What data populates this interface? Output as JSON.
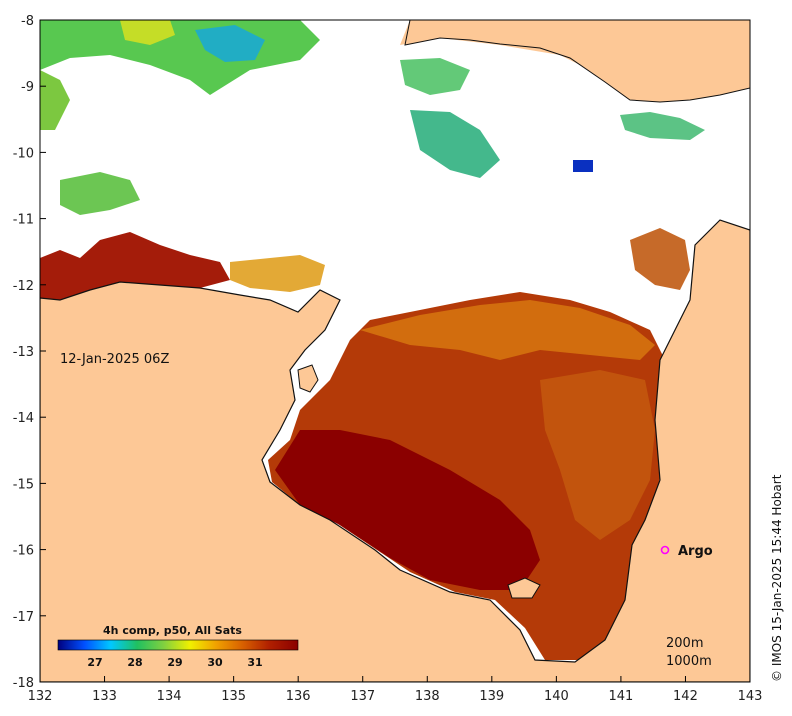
{
  "map": {
    "lon_ticks": [
      "132",
      "133",
      "134",
      "135",
      "136",
      "137",
      "138",
      "139",
      "140",
      "141",
      "142",
      "143"
    ],
    "lat_ticks": [
      "-8",
      "-9",
      "-10",
      "-11",
      "-12",
      "-13",
      "-14",
      "-15",
      "-16",
      "-17",
      "-18"
    ],
    "lon_range": [
      132,
      143
    ],
    "lat_range": [
      -8,
      -18
    ],
    "timestamp_label": "12-Jan-2025 06Z",
    "argo_label": "Argo",
    "argo_position": {
      "lon": 141.7,
      "lat": -16.0
    },
    "depth_labels": [
      "200m",
      "1000m"
    ],
    "credit": "© IMOS 15-Jan-2025 15:44 Hobart",
    "colorbar": {
      "title": "4h comp, p50, All Sats",
      "range": [
        26.0,
        32.0
      ],
      "ticks": [
        "27",
        "28",
        "29",
        "30",
        "31"
      ],
      "colors": [
        "#00007f",
        "#0050ff",
        "#00c8ff",
        "#20c060",
        "#80d040",
        "#f0f000",
        "#f0a000",
        "#d86000",
        "#b02000",
        "#8b0000"
      ]
    },
    "colors": {
      "land": "#fdc896",
      "no_data": "#ffffff",
      "argo_marker": "#ff00ff"
    }
  }
}
